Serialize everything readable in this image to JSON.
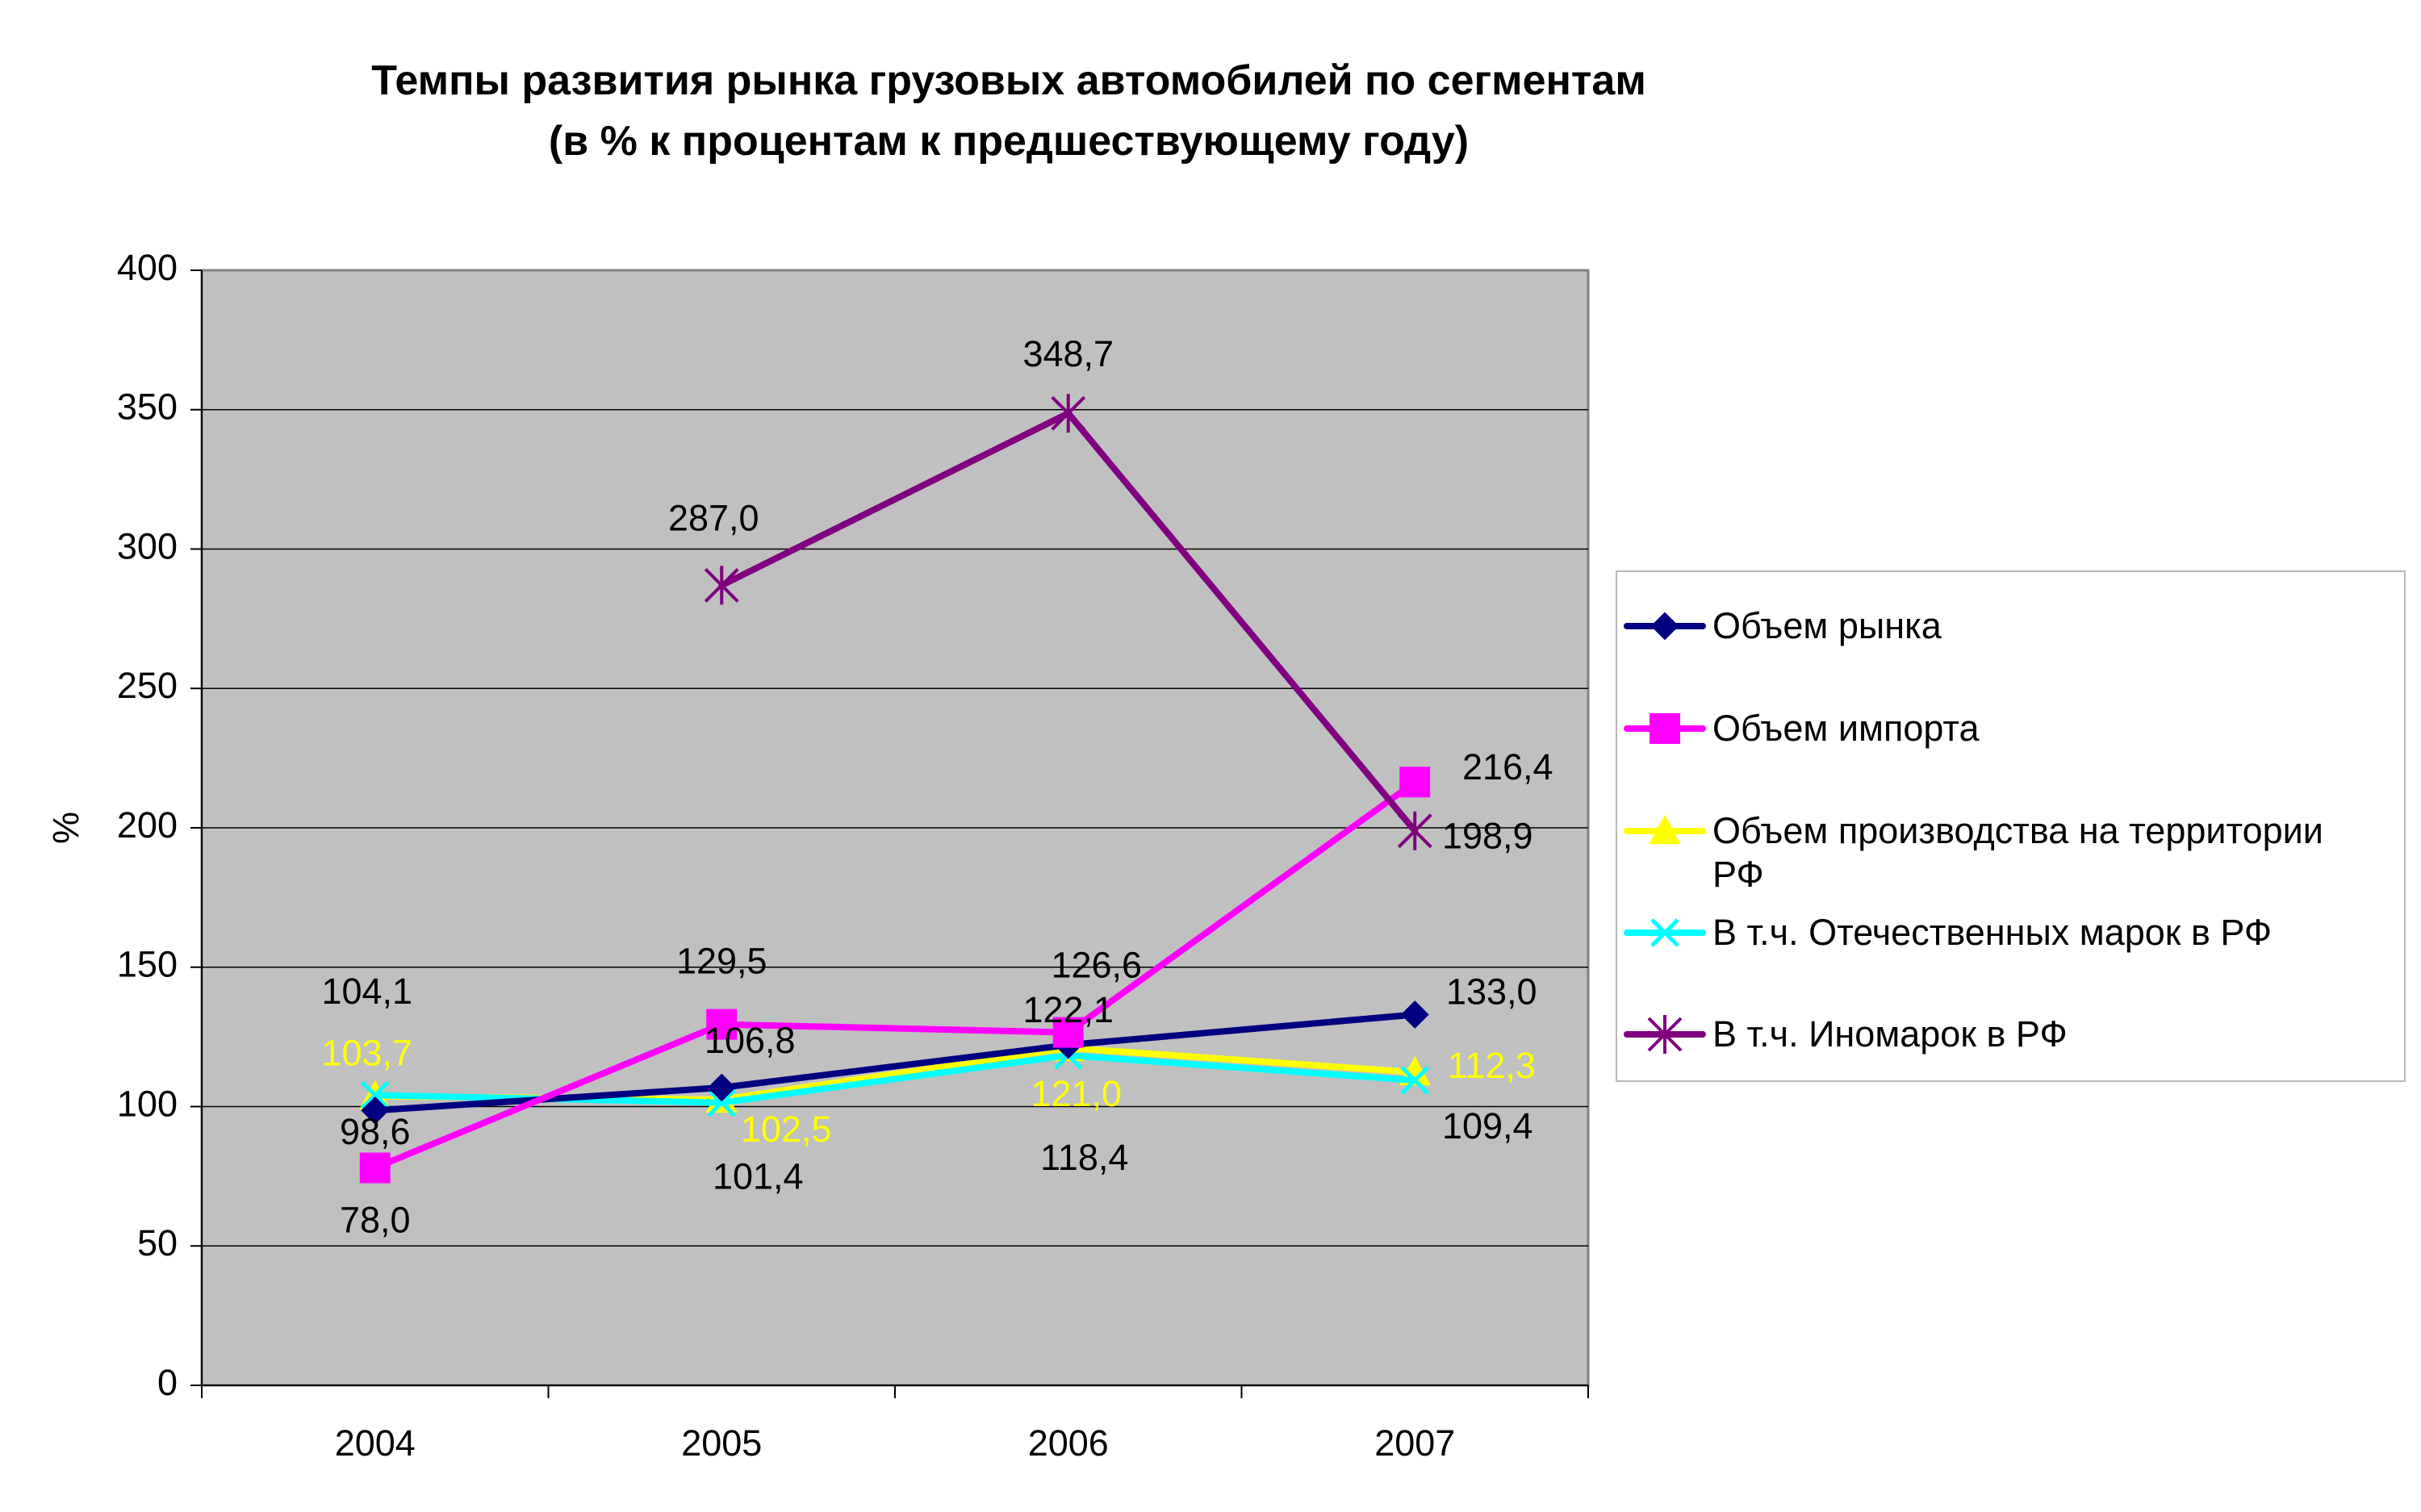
{
  "chart_data": {
    "type": "line",
    "title": "Темпы развития рынка грузовых автомобилей по сегментам",
    "subtitle": "(в % к процентам к предшествующему году)",
    "xlabel": "",
    "ylabel": "%",
    "categories": [
      "2004",
      "2005",
      "2006",
      "2007"
    ],
    "ylim": [
      0,
      400
    ],
    "yticks": [
      0,
      50,
      100,
      150,
      200,
      250,
      300,
      350,
      400
    ],
    "ytick_labels": [
      "0",
      "50",
      "100",
      "150",
      "200",
      "250",
      "300",
      "350",
      "400"
    ],
    "grid": true,
    "plot_background": "#c0c0c0",
    "legend_position": "right",
    "series": [
      {
        "name": "Объем рынка",
        "color": "#000080",
        "marker": "diamond",
        "values": [
          98.6,
          106.8,
          122.1,
          133.0
        ],
        "labels": [
          "98,6",
          "106,8",
          "122,1",
          "133,0"
        ],
        "label_color": "#000000"
      },
      {
        "name": "Объем импорта",
        "color": "#ff00ff",
        "marker": "square",
        "values": [
          78.0,
          129.5,
          126.6,
          216.4
        ],
        "labels": [
          "78,0",
          "129,5",
          "126,6",
          "216,4"
        ],
        "label_color": "#000000"
      },
      {
        "name": "Объем производства на территории РФ",
        "color": "#ffff00",
        "marker": "triangle",
        "values": [
          103.7,
          102.5,
          121.0,
          112.3
        ],
        "labels": [
          "103,7",
          "102,5",
          "121,0",
          "112,3"
        ],
        "label_color": "#ffff00"
      },
      {
        "name": "В т.ч. Отечественных марок в РФ",
        "color": "#00ffff",
        "marker": "x",
        "values": [
          104.1,
          101.4,
          118.4,
          109.4
        ],
        "labels": [
          "104,1",
          "101,4",
          "118,4",
          "109,4"
        ],
        "label_color": "#000000"
      },
      {
        "name": "В т.ч. Иномарок в РФ",
        "color": "#800080",
        "marker": "star",
        "values": [
          null,
          287.0,
          348.7,
          198.9
        ],
        "labels": [
          null,
          "287,0",
          "348,7",
          "198,9"
        ],
        "label_color": "#000000"
      }
    ]
  },
  "legend": {
    "items": [
      {
        "label_line1": "Объем рынка"
      },
      {
        "label_line1": "Объем импорта"
      },
      {
        "label_line1": "Объем производства на территории",
        "label_line2": "РФ"
      },
      {
        "label_line1": "В т.ч. Отечественных марок в РФ"
      },
      {
        "label_line1": "В т.ч. Иномарок в РФ"
      }
    ]
  }
}
